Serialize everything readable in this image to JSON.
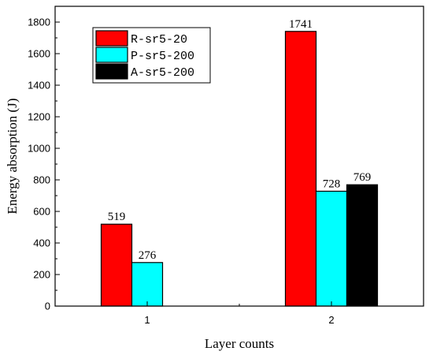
{
  "chart_data": {
    "type": "bar",
    "xlabel": "Layer counts",
    "ylabel": "Energy absorption (J)",
    "categories": [
      "1",
      "2"
    ],
    "ylim": [
      0,
      1900
    ],
    "yticks": [
      0,
      200,
      400,
      600,
      800,
      1000,
      1200,
      1400,
      1600,
      1800
    ],
    "series": [
      {
        "name": "R-sr5-20",
        "color": "#ff0000",
        "values": [
          519,
          1741
        ]
      },
      {
        "name": "P-sr5-200",
        "color": "#00ffff",
        "values": [
          276,
          728
        ]
      },
      {
        "name": "A-sr5-200",
        "color": "#000000",
        "values": [
          null,
          769
        ]
      }
    ],
    "data_labels": [
      [
        "519",
        "1741"
      ],
      [
        "276",
        "728"
      ],
      [
        null,
        "769"
      ]
    ],
    "legend_position": "top-left",
    "grid": false
  }
}
